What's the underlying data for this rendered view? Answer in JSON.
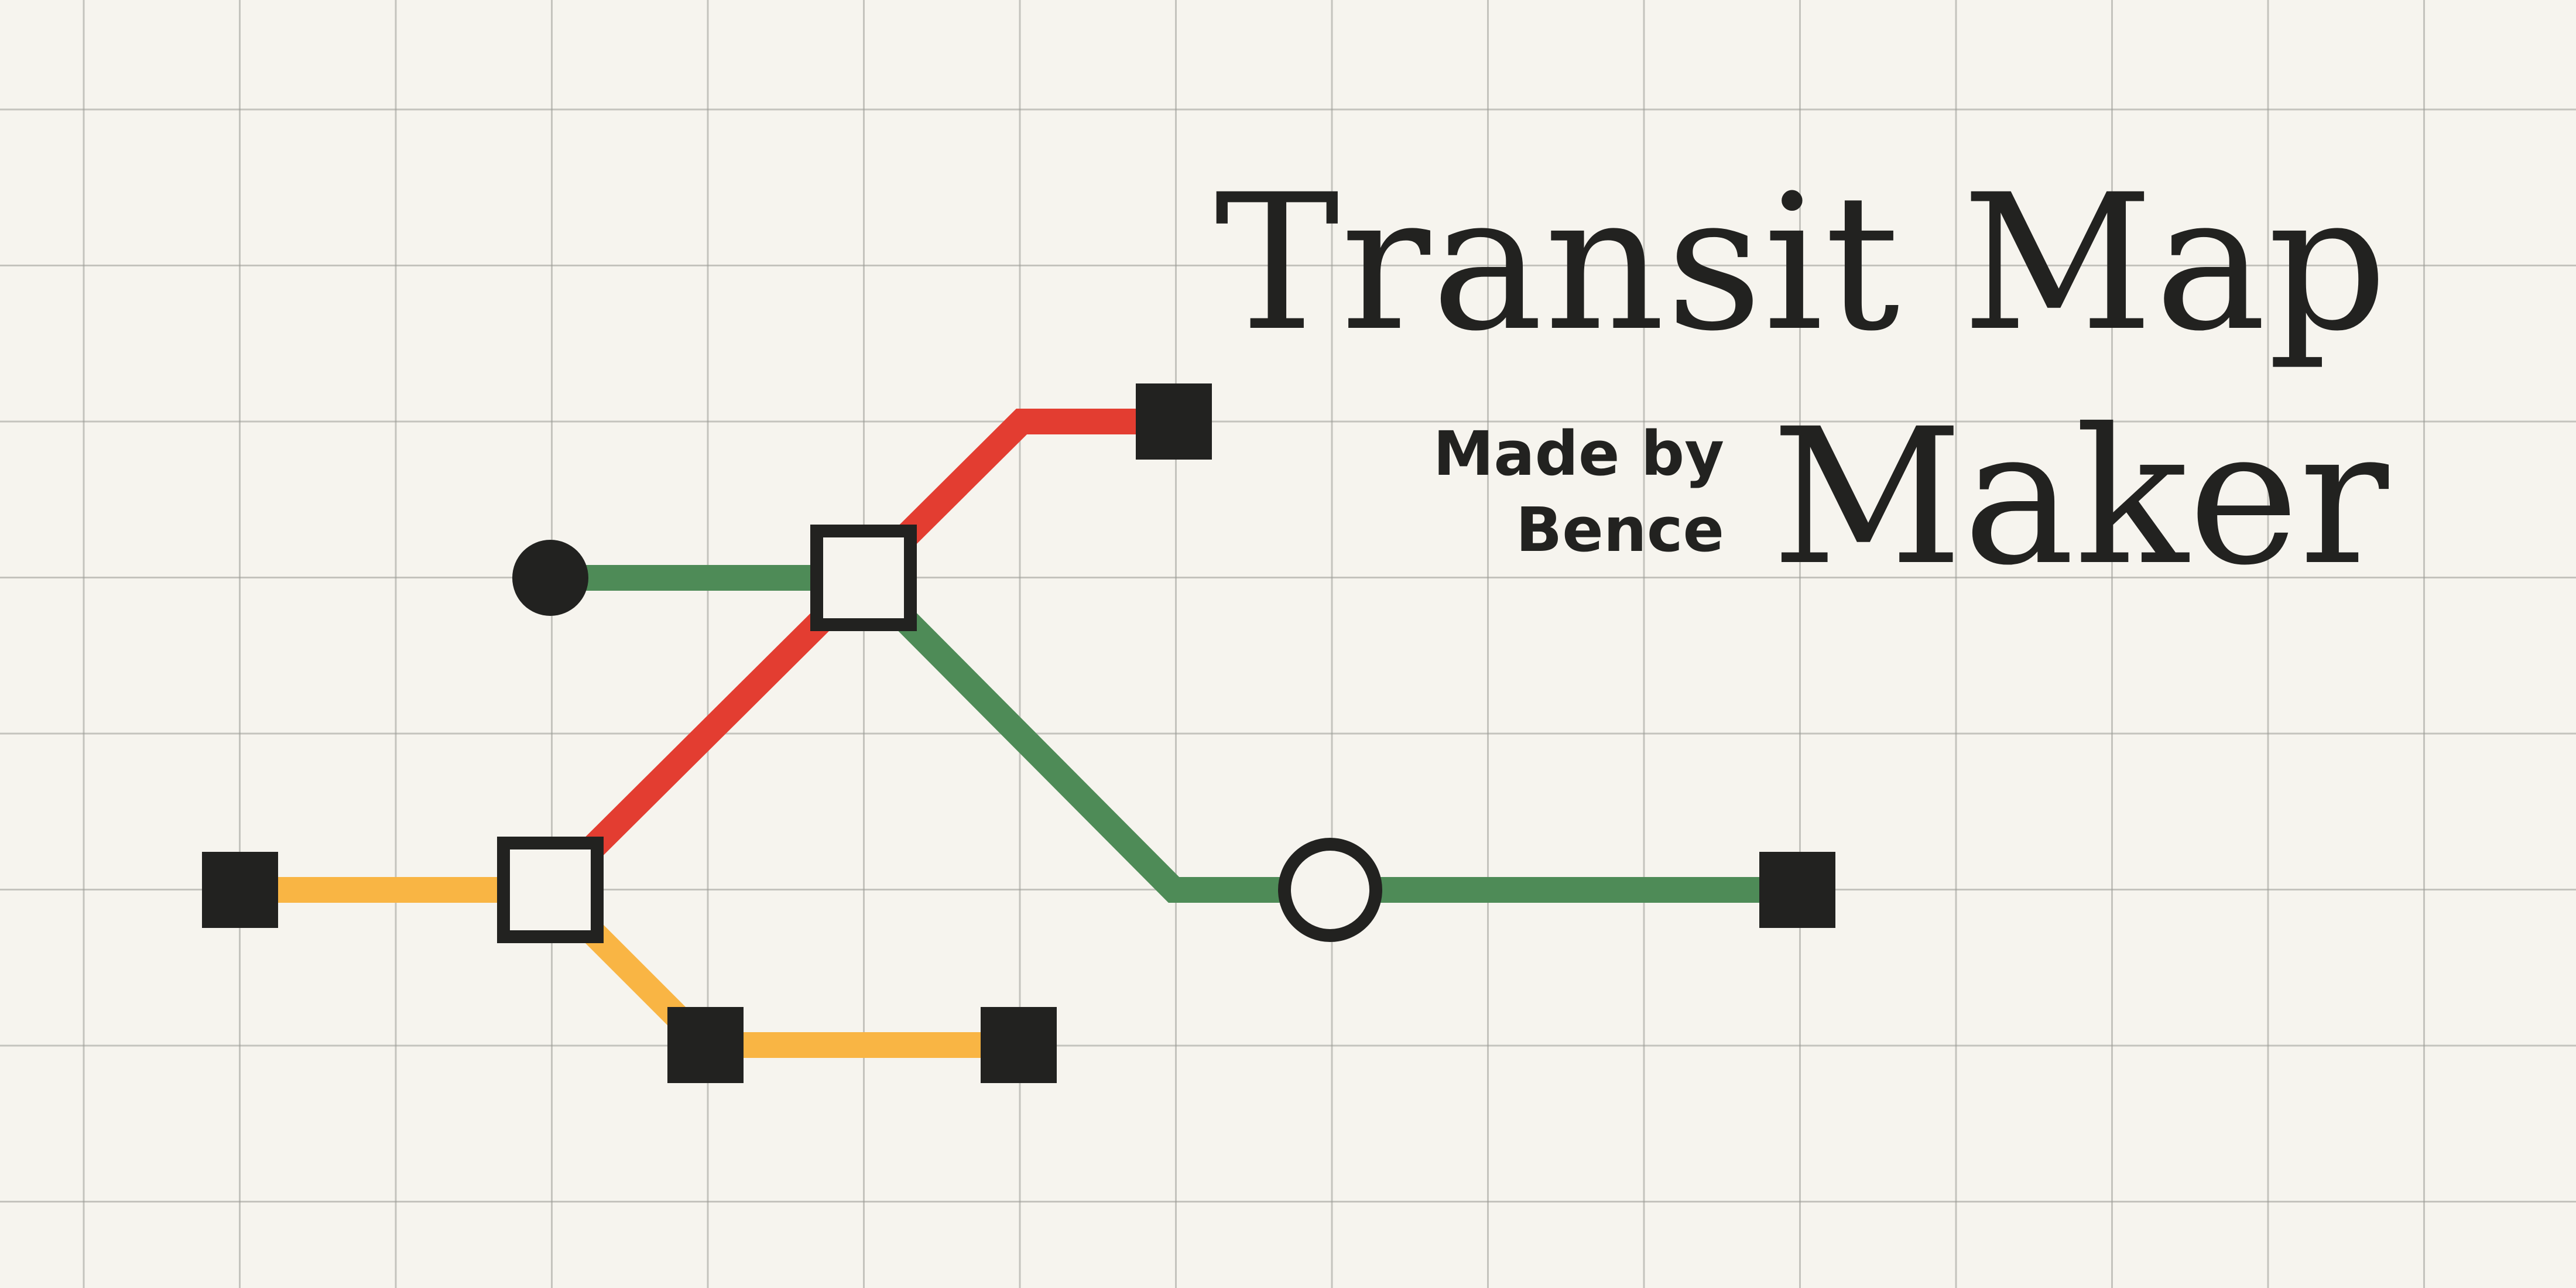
{
  "title": {
    "line1": "Transit Map",
    "line2": "Maker"
  },
  "credit": {
    "line1": "Made by",
    "line2": "Bence"
  },
  "colors": {
    "background": "#f6f4ee",
    "grid": "#9a9a96",
    "ink": "#222220",
    "station_fill": "#f6f4ee",
    "green_line": "#4e8b57",
    "red_line": "#e33d31",
    "yellow_line": "#f9b544"
  },
  "lines": [
    {
      "id": "green",
      "color": "#4e8b57",
      "stations": [
        "green-west-terminal",
        "north-interchange",
        "white-circle-station",
        "east-terminal"
      ]
    },
    {
      "id": "red",
      "color": "#e33d31",
      "stations": [
        "south-interchange",
        "north-interchange",
        "northeast-terminal"
      ]
    },
    {
      "id": "yellow",
      "color": "#f9b544",
      "stations": [
        "west-terminal",
        "south-interchange",
        "south-station",
        "southeast-terminal"
      ]
    }
  ],
  "stations": [
    {
      "id": "green-west-terminal",
      "kind": "terminal-circle"
    },
    {
      "id": "north-interchange",
      "kind": "interchange"
    },
    {
      "id": "south-interchange",
      "kind": "interchange"
    },
    {
      "id": "white-circle-station",
      "kind": "open-circle"
    },
    {
      "id": "east-terminal",
      "kind": "terminal-square"
    },
    {
      "id": "northeast-terminal",
      "kind": "terminal-square"
    },
    {
      "id": "west-terminal",
      "kind": "terminal-square"
    },
    {
      "id": "south-station",
      "kind": "terminal-square"
    },
    {
      "id": "southeast-terminal",
      "kind": "terminal-square"
    }
  ]
}
